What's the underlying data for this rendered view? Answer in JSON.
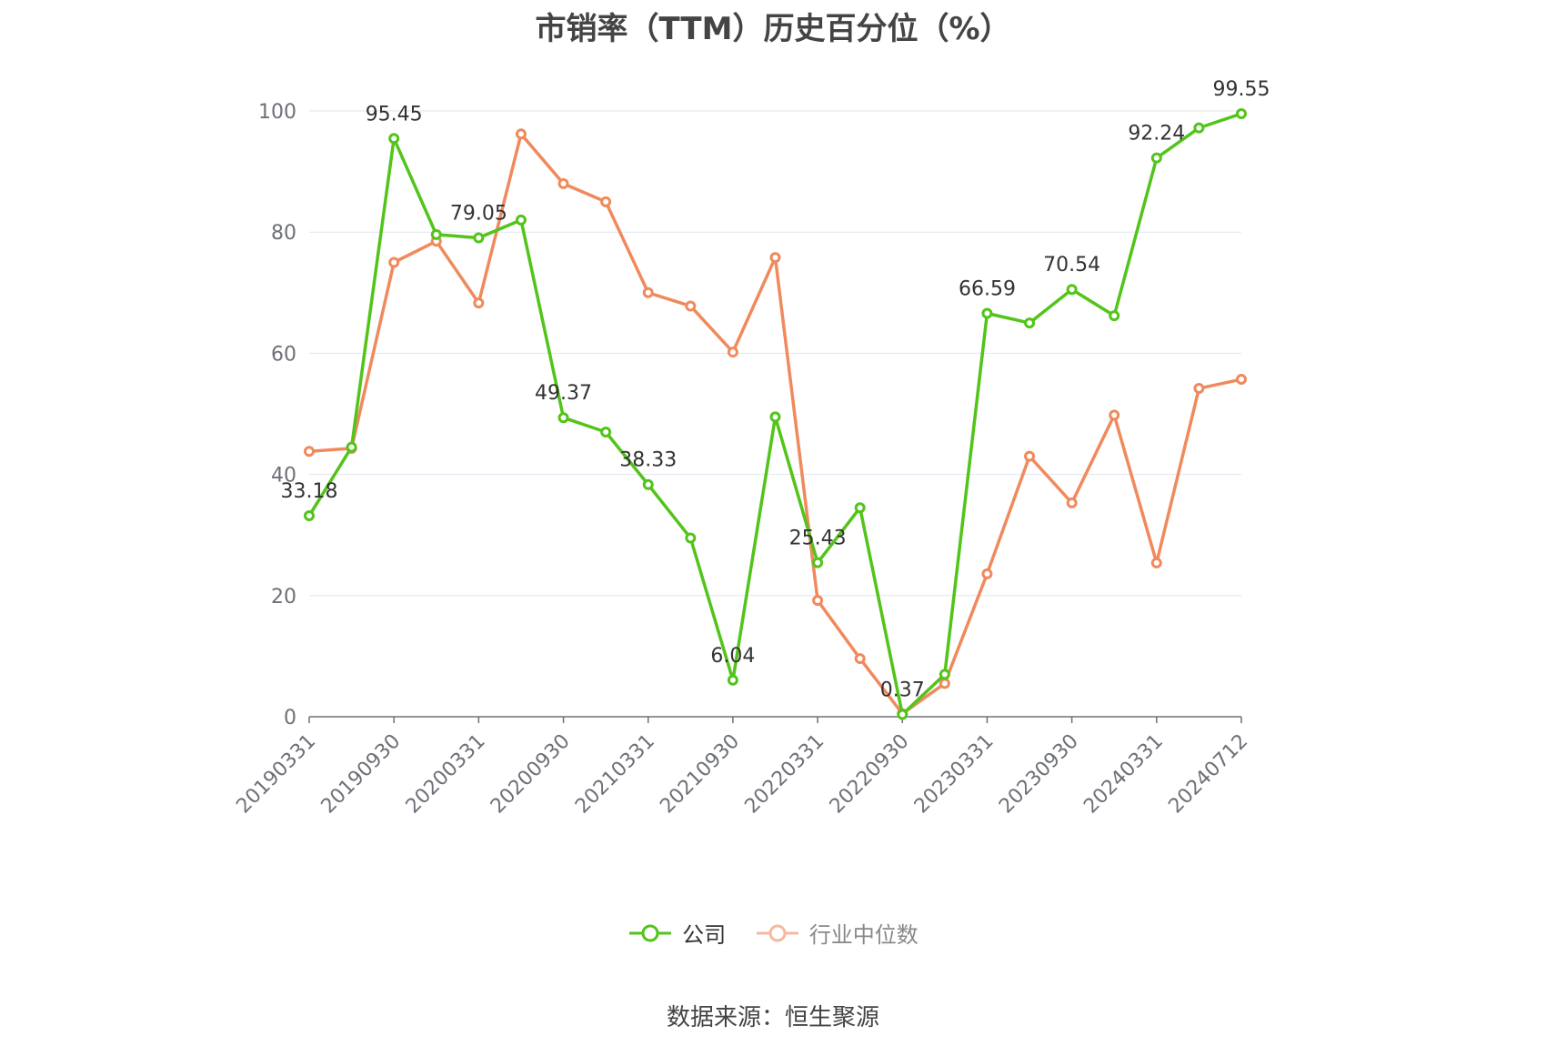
{
  "chart_data": {
    "type": "line",
    "title": "市销率（TTM）历史百分位（%）",
    "x": [
      "20190331",
      "20190630",
      "20190930",
      "20191231",
      "20200331",
      "20200630",
      "20200930",
      "20201231",
      "20210331",
      "20210630",
      "20210930",
      "20211231",
      "20220331",
      "20220630",
      "20220930",
      "20221231",
      "20230331",
      "20230630",
      "20230930",
      "20231231",
      "20240331",
      "20240630",
      "20240712"
    ],
    "x_tick_labels": [
      "20190331",
      "20190930",
      "20200331",
      "20200930",
      "20210331",
      "20210930",
      "20220331",
      "20220930",
      "20230331",
      "20230930",
      "20240331",
      "20240712"
    ],
    "ylim": [
      0,
      100
    ],
    "y_ticks": [
      "0",
      "20",
      "40",
      "60",
      "80",
      "100"
    ],
    "grid": true,
    "legend_position": "bottom",
    "series": [
      {
        "name": "公司",
        "color": "#52c41a",
        "values": [
          33.18,
          44.5,
          95.45,
          79.6,
          79.05,
          82.0,
          49.37,
          47.0,
          38.33,
          29.5,
          6.04,
          49.5,
          25.43,
          34.5,
          0.37,
          7.0,
          66.59,
          65.0,
          70.54,
          66.2,
          92.24,
          97.2,
          99.55
        ],
        "labels": [
          "33.18",
          "",
          "95.45",
          "",
          "79.05",
          "",
          "49.37",
          "",
          "38.33",
          "",
          "6.04",
          "",
          "25.43",
          "",
          "0.37",
          "",
          "66.59",
          "",
          "70.54",
          "",
          "92.24",
          "",
          "99.55"
        ]
      },
      {
        "name": "行业中位数",
        "color": "#f08a5d",
        "values": [
          43.8,
          44.3,
          75.0,
          78.5,
          68.3,
          96.2,
          88.0,
          85.0,
          70.0,
          67.8,
          60.2,
          75.8,
          19.2,
          9.6,
          0.5,
          5.5,
          23.6,
          43.0,
          35.3,
          49.8,
          25.4,
          54.2,
          55.7
        ]
      }
    ]
  },
  "legend": [
    {
      "label": "公司",
      "color": "#52c41a",
      "text_color": "#333333"
    },
    {
      "label": "行业中位数",
      "color": "#f4b9a0",
      "text_color": "#888888"
    }
  ],
  "source_text": "数据来源：恒生聚源"
}
